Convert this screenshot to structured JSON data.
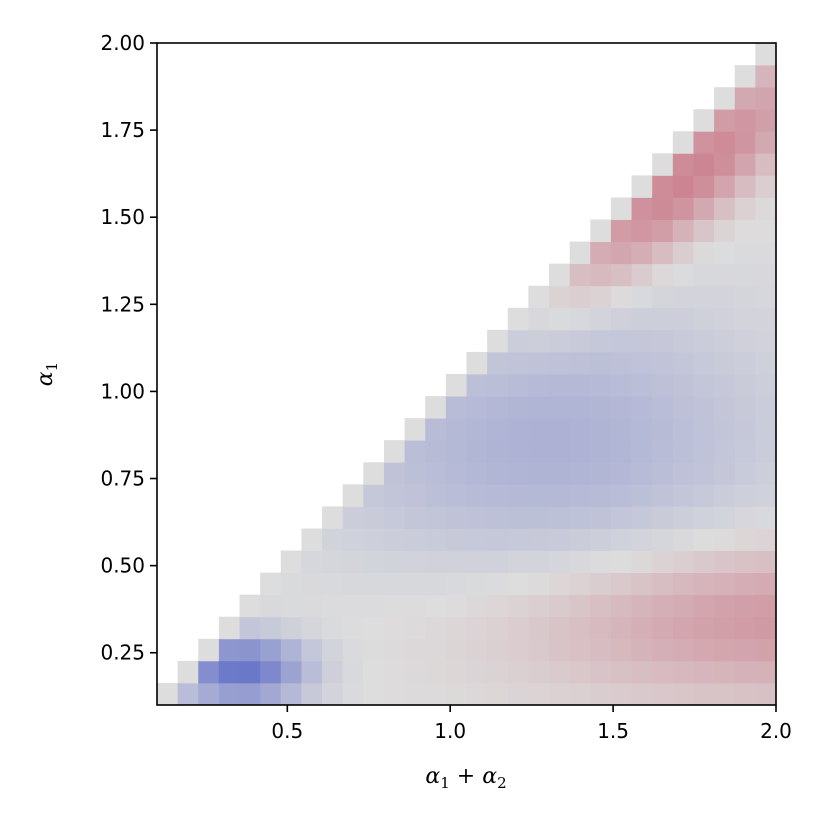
{
  "chart_data": {
    "type": "heatmap",
    "title": "",
    "xlabel": "α1 + α2",
    "ylabel": "α1",
    "xlim": [
      0.1,
      2.0
    ],
    "ylim": [
      0.1,
      2.0
    ],
    "x_ticks": [
      "0.5",
      "1.0",
      "1.5",
      "2.0"
    ],
    "y_ticks": [
      "0.25",
      "0.50",
      "0.75",
      "1.00",
      "1.25",
      "1.50",
      "1.75",
      "2.00"
    ],
    "grid": false,
    "legend": "none",
    "colormap": "coolwarm",
    "color_range": [
      -1,
      1
    ],
    "grid_size": 30,
    "cells_defined_where": "α1 < α1 + α2 (upper-left triangle empty)",
    "colors": {
      "diagonal_neutral": "#dddddd",
      "strong_blue": "#7b9ff9",
      "strong_red": "#ee8468",
      "background": "#ffffff"
    }
  }
}
